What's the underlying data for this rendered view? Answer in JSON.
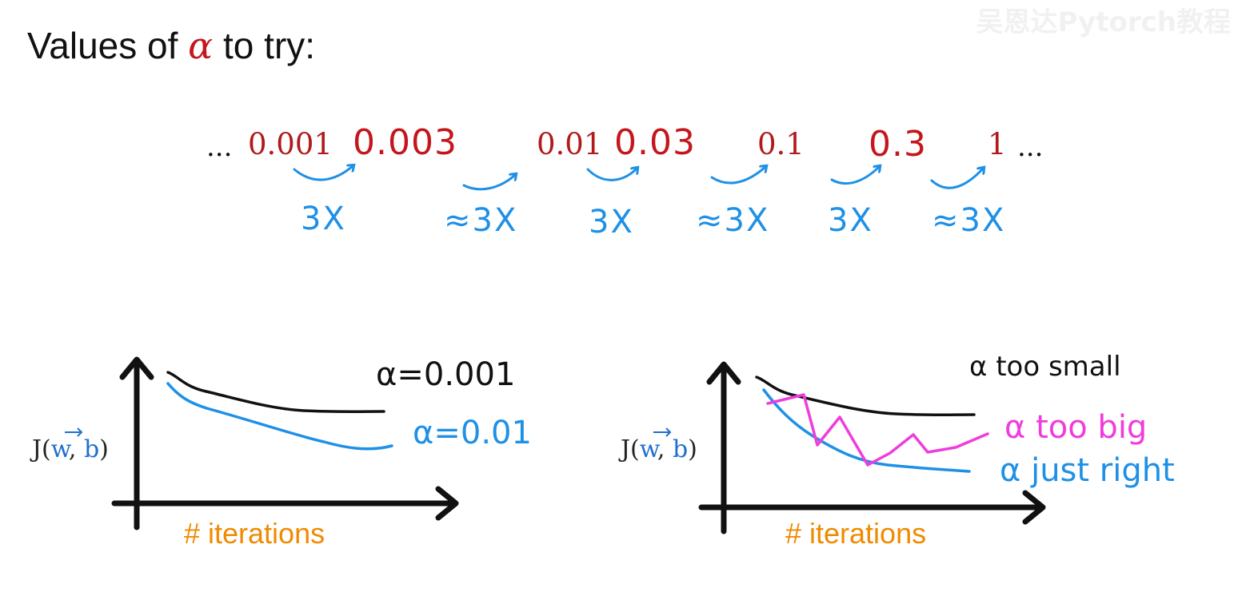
{
  "title": {
    "prefix": "Values of ",
    "symbol": "α",
    "suffix": " to try:"
  },
  "watermark": "吴恩达Pytorch教程",
  "sequence": {
    "leading_dots": "...",
    "trailing_dots": "...",
    "values": [
      "0.001",
      "0.003",
      "0.01",
      "0.03",
      "0.1",
      "0.3",
      "1"
    ],
    "steps": [
      "3X",
      "≈3X",
      "3X",
      "≈3X",
      "3X",
      "≈3X"
    ]
  },
  "colors": {
    "value": "#c4161c",
    "step": "#1e90e6",
    "axis_label": "#f08a00",
    "curve_black": "#111111",
    "curve_blue": "#1e90e6",
    "curve_pink": "#f03cdc"
  },
  "left_plot": {
    "ylabel": {
      "J": "J(",
      "w": "w",
      "comma": ", ",
      "b": "b",
      "close": ")"
    },
    "xlabel": "# iterations",
    "series": [
      {
        "label": "α=0.001",
        "color": "black"
      },
      {
        "label": "α=0.01",
        "color": "blue"
      }
    ]
  },
  "right_plot": {
    "ylabel": {
      "J": "J(",
      "w": "w",
      "comma": ", ",
      "b": "b",
      "close": ")"
    },
    "xlabel": "# iterations",
    "series": [
      {
        "label": "α too small",
        "color": "black"
      },
      {
        "label": "α too big",
        "color": "pink"
      },
      {
        "label": "α just right",
        "color": "blue"
      }
    ]
  }
}
